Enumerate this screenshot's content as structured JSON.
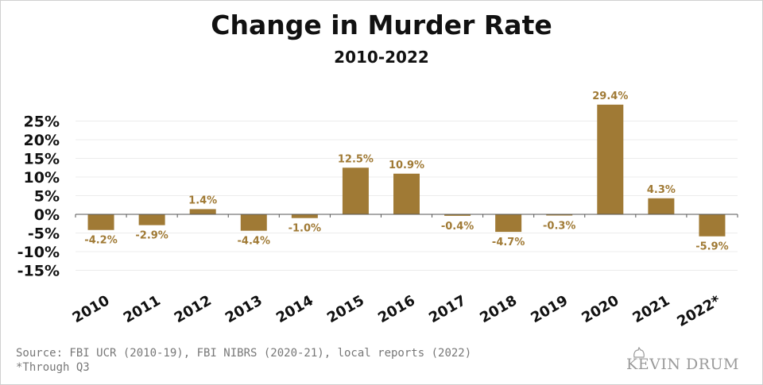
{
  "chart_data": {
    "type": "bar",
    "title": "Change in Murder Rate",
    "subtitle": "2010-2022",
    "categories": [
      "2010",
      "2011",
      "2012",
      "2013",
      "2014",
      "2015",
      "2016",
      "2017",
      "2018",
      "2019",
      "2020",
      "2021",
      "2022*"
    ],
    "values": [
      -4.2,
      -2.9,
      1.4,
      -4.4,
      -1.0,
      12.5,
      10.9,
      -0.4,
      -4.7,
      -0.3,
      29.4,
      4.3,
      -5.9
    ],
    "data_labels": [
      "-4.2%",
      "-2.9%",
      "1.4%",
      "-4.4%",
      "-1.0%",
      "12.5%",
      "10.9%",
      "-0.4%",
      "-4.7%",
      "-0.3%",
      "29.4%",
      "4.3%",
      "-5.9%"
    ],
    "y_ticks": [
      25,
      20,
      15,
      10,
      5,
      0,
      -5,
      -10,
      -15
    ],
    "y_tick_labels": [
      "25%",
      "20%",
      "15%",
      "10%",
      "5%",
      "0%",
      "-5%",
      "-10%",
      "-15%"
    ],
    "ylim": [
      -15,
      30
    ],
    "xlabel": "",
    "ylabel": "",
    "grid": true,
    "bar_color": "#a07a35",
    "label_color": "#a07a35"
  },
  "footer": {
    "source": "Source: FBI UCR (2010-19), FBI NIBRS (2020-21), local reports (2022)",
    "note": "*Through Q3",
    "brand": "KEVIN DRUM"
  }
}
